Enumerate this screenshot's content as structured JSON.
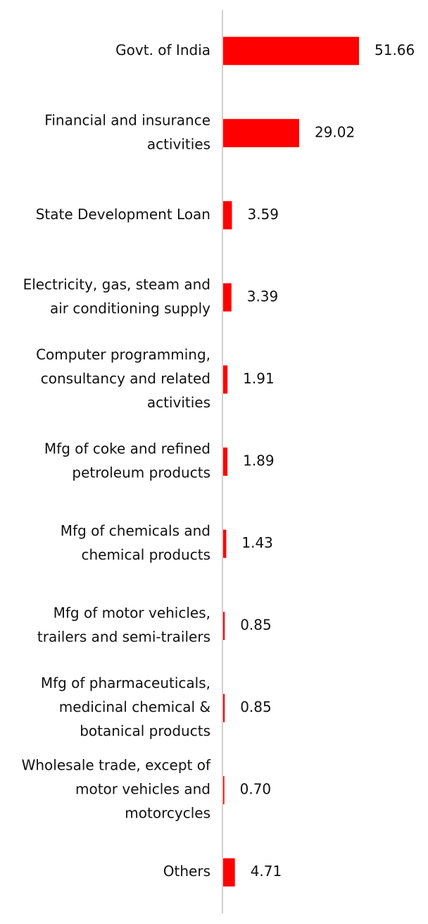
{
  "chart_data": {
    "type": "bar",
    "orientation": "horizontal",
    "categories": [
      [
        "Govt. of India"
      ],
      [
        "Financial and insurance",
        "activities"
      ],
      [
        "State Development Loan"
      ],
      [
        "Electricity, gas, steam and",
        "air conditioning supply"
      ],
      [
        "Computer programming,",
        "consultancy and related",
        "activities"
      ],
      [
        "Mfg of coke and refined",
        "petroleum products"
      ],
      [
        "Mfg of chemicals and",
        "chemical products"
      ],
      [
        "Mfg of motor vehicles,",
        "trailers and semi-trailers"
      ],
      [
        "Mfg of pharmaceuticals,",
        "medicinal chemical &",
        "botanical products"
      ],
      [
        "Wholesale trade, except of",
        "motor vehicles and",
        "motorcycles"
      ],
      [
        "Others"
      ]
    ],
    "values": [
      51.66,
      29.02,
      3.59,
      3.39,
      1.91,
      1.89,
      1.43,
      0.85,
      0.85,
      0.7,
      4.71
    ],
    "value_labels": [
      "51.66",
      "29.02",
      "3.59",
      "3.39",
      "1.91",
      "1.89",
      "1.43",
      "0.85",
      "0.85",
      "0.70",
      "4.71"
    ],
    "xlim": [
      0,
      60
    ],
    "grid": false,
    "legend": "none",
    "bar_color": "#ff0000",
    "axis_color": "#d0d0d0"
  }
}
